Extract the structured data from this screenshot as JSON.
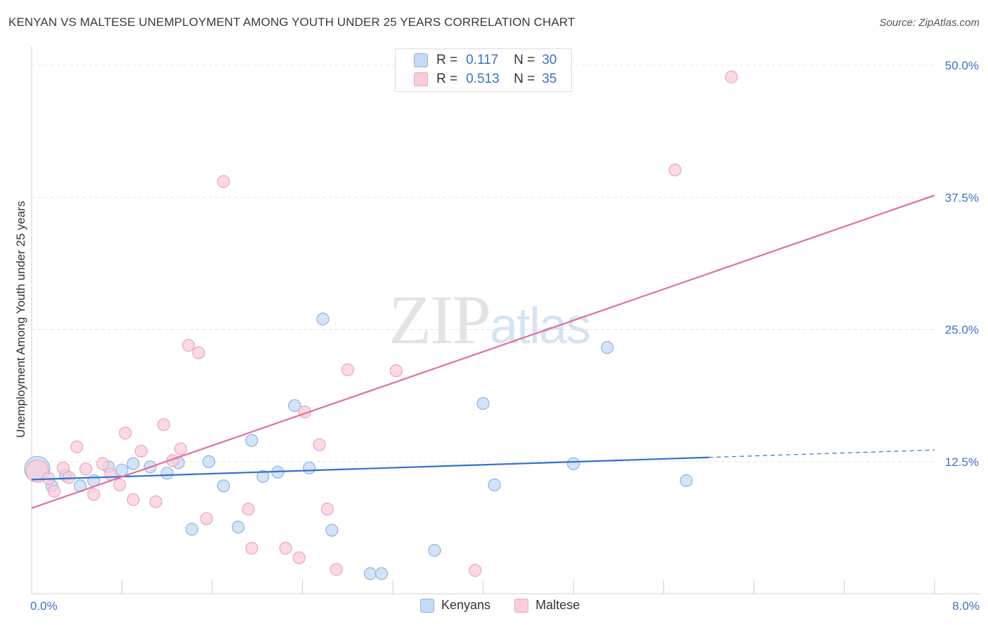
{
  "header": {
    "title": "KENYAN VS MALTESE UNEMPLOYMENT AMONG YOUTH UNDER 25 YEARS CORRELATION CHART",
    "source": "Source: ZipAtlas.com"
  },
  "watermark": {
    "zip": "ZIP",
    "atlas": "atlas"
  },
  "legend": {
    "r_label": "R =",
    "n_label": "N =",
    "kenyans": {
      "name": "Kenyans",
      "r": "0.117",
      "n": "30"
    },
    "maltese": {
      "name": "Maltese",
      "r": "0.513",
      "n": "35"
    }
  },
  "colors": {
    "kenyans_fill": "#c7d9f4",
    "kenyans_stroke": "#8fb2e3",
    "kenyans_line": "#2f72cc",
    "maltese_fill": "#f8cddb",
    "maltese_stroke": "#eea3bd",
    "maltese_line": "#e0709a",
    "tick_label": "#3a72c9",
    "grid": "#e3e3e3"
  },
  "chart_data": {
    "type": "scatter",
    "title": "KENYAN VS MALTESE UNEMPLOYMENT AMONG YOUTH UNDER 25 YEARS CORRELATION CHART",
    "xlabel": "",
    "ylabel": "Unemployment Among Youth under 25 years",
    "xlim": [
      0,
      8
    ],
    "ylim": [
      0,
      51
    ],
    "x_tick_labels": [
      {
        "value": 0,
        "label": "0.0%"
      },
      {
        "value": 8,
        "label": "8.0%"
      }
    ],
    "y_tick_labels": [
      {
        "value": 12.5,
        "label": "12.5%"
      },
      {
        "value": 25,
        "label": "25.0%"
      },
      {
        "value": 37.5,
        "label": "37.5%"
      },
      {
        "value": 50,
        "label": "50.0%"
      }
    ],
    "series": [
      {
        "name": "Kenyans",
        "points": [
          [
            0.05,
            11.8
          ],
          [
            0.18,
            10.2
          ],
          [
            0.3,
            11.2
          ],
          [
            0.43,
            10.2
          ],
          [
            0.55,
            10.7
          ],
          [
            0.68,
            12.0
          ],
          [
            0.8,
            11.7
          ],
          [
            0.9,
            12.3
          ],
          [
            1.05,
            12.0
          ],
          [
            1.2,
            11.4
          ],
          [
            1.3,
            12.4
          ],
          [
            1.42,
            6.1
          ],
          [
            1.57,
            12.5
          ],
          [
            1.7,
            10.2
          ],
          [
            1.83,
            6.3
          ],
          [
            1.95,
            14.5
          ],
          [
            2.05,
            11.1
          ],
          [
            2.18,
            11.5
          ],
          [
            2.33,
            17.8
          ],
          [
            2.46,
            11.9
          ],
          [
            2.58,
            26.0
          ],
          [
            2.66,
            6.0
          ],
          [
            3.0,
            1.9
          ],
          [
            3.1,
            1.9
          ],
          [
            3.57,
            4.1
          ],
          [
            4.0,
            18.0
          ],
          [
            4.1,
            10.3
          ],
          [
            4.8,
            12.3
          ],
          [
            5.1,
            23.3
          ],
          [
            5.8,
            10.7
          ]
        ],
        "trend": {
          "x_start": 0,
          "y_start": 10.8,
          "x_solid_end": 6.0,
          "y_solid_end": 12.9,
          "x_end": 8.0,
          "y_end": 13.6
        }
      },
      {
        "name": "Maltese",
        "points": [
          [
            0.05,
            11.6
          ],
          [
            0.15,
            10.9
          ],
          [
            0.2,
            9.7
          ],
          [
            0.28,
            11.9
          ],
          [
            0.33,
            11.0
          ],
          [
            0.4,
            13.9
          ],
          [
            0.48,
            11.8
          ],
          [
            0.55,
            9.4
          ],
          [
            0.63,
            12.3
          ],
          [
            0.7,
            11.3
          ],
          [
            0.78,
            10.3
          ],
          [
            0.83,
            15.2
          ],
          [
            0.9,
            8.9
          ],
          [
            0.97,
            13.5
          ],
          [
            1.1,
            8.7
          ],
          [
            1.17,
            16.0
          ],
          [
            1.25,
            12.6
          ],
          [
            1.32,
            13.7
          ],
          [
            1.39,
            23.5
          ],
          [
            1.48,
            22.8
          ],
          [
            1.55,
            7.1
          ],
          [
            1.7,
            39.0
          ],
          [
            1.92,
            8.0
          ],
          [
            1.95,
            4.3
          ],
          [
            2.25,
            4.3
          ],
          [
            2.37,
            3.4
          ],
          [
            2.42,
            17.2
          ],
          [
            2.55,
            14.1
          ],
          [
            2.62,
            8.0
          ],
          [
            2.7,
            2.3
          ],
          [
            2.8,
            21.2
          ],
          [
            3.23,
            21.1
          ],
          [
            3.93,
            2.2
          ],
          [
            5.7,
            40.1
          ],
          [
            6.2,
            48.9
          ]
        ],
        "trend": {
          "x_start": 0,
          "y_start": 8.1,
          "x_solid_end": 8.0,
          "y_solid_end": 37.7,
          "x_end": 8.0,
          "y_end": 37.7
        }
      }
    ]
  }
}
